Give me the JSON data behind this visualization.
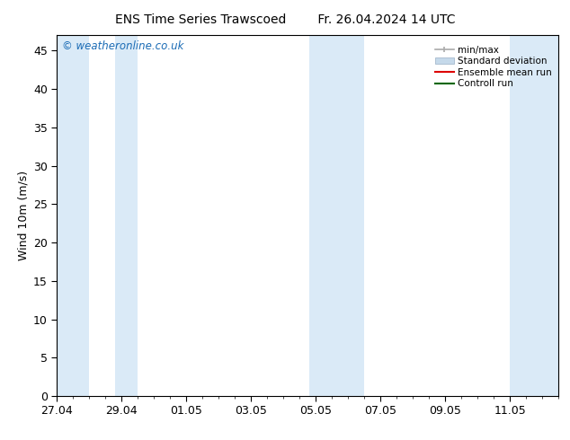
{
  "title_left": "ENS Time Series Trawscoed",
  "title_right": "Fr. 26.04.2024 14 UTC",
  "ylabel": "Wind 10m (m/s)",
  "ylim": [
    0,
    47
  ],
  "yticks": [
    0,
    5,
    10,
    15,
    20,
    25,
    30,
    35,
    40,
    45
  ],
  "xlim": [
    0,
    15.5
  ],
  "xtick_positions": [
    0,
    2,
    4,
    6,
    8,
    10,
    12,
    14
  ],
  "xtick_labels": [
    "27.04",
    "29.04",
    "01.05",
    "03.05",
    "05.05",
    "07.05",
    "09.05",
    "11.05"
  ],
  "shaded_bands": [
    [
      0.0,
      1.0
    ],
    [
      1.8,
      2.5
    ],
    [
      7.8,
      8.5
    ],
    [
      8.5,
      9.5
    ],
    [
      14.0,
      15.5
    ]
  ],
  "shaded_color": "#daeaf7",
  "watermark_text": "© weatheronline.co.uk",
  "watermark_color": "#1a6bb5",
  "legend_labels": [
    "min/max",
    "Standard deviation",
    "Ensemble mean run",
    "Controll run"
  ],
  "legend_colors": [
    "#aaaaaa",
    "#c5d9ea",
    "#dd0000",
    "#006600"
  ],
  "bg_color": "#ffffff",
  "font_size": 9,
  "title_font_size": 10
}
